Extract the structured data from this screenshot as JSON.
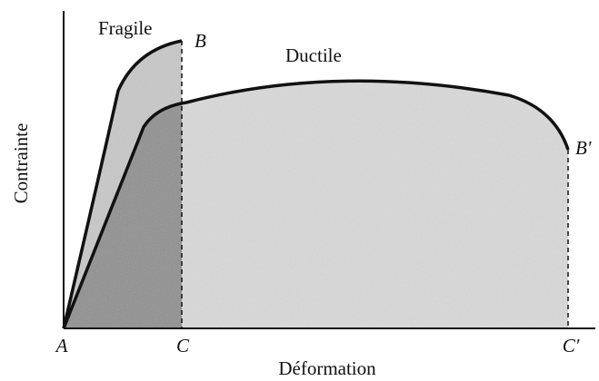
{
  "curves": {
    "fragile": "Fragile",
    "ductile": "Ductile"
  },
  "points": {
    "a": "A",
    "b": "B",
    "b_prime": "B'",
    "c": "C",
    "c_prime": "C′"
  },
  "axes": {
    "y_label": "Contrainte",
    "x_label": "Déformation"
  }
}
